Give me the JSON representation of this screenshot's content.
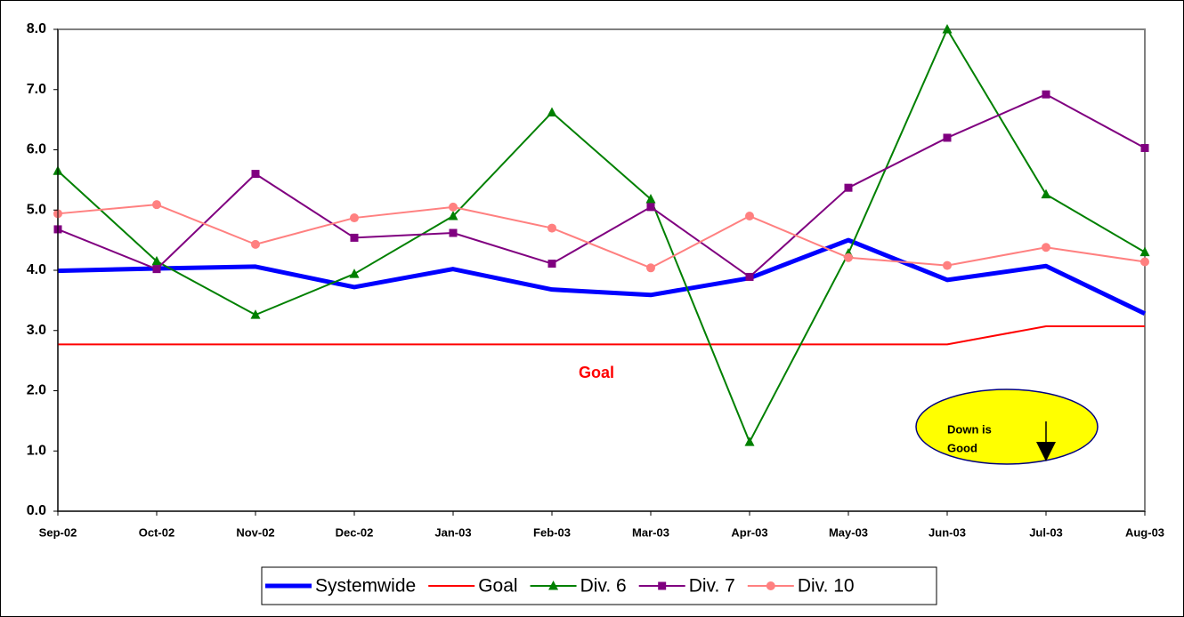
{
  "chart_data": {
    "type": "line",
    "categories": [
      "Sep-02",
      "Oct-02",
      "Nov-02",
      "Dec-02",
      "Jan-03",
      "Feb-03",
      "Mar-03",
      "Apr-03",
      "May-03",
      "Jun-03",
      "Jul-03",
      "Aug-03"
    ],
    "series": [
      {
        "name": "Systemwide",
        "color": "#0000ff",
        "line_width": 5,
        "marker": "none",
        "values": [
          3.99,
          4.03,
          4.06,
          3.72,
          4.02,
          3.68,
          3.59,
          3.87,
          4.5,
          3.84,
          4.07,
          3.28
        ]
      },
      {
        "name": "Goal",
        "color": "#ff0000",
        "line_width": 2,
        "marker": "none",
        "values": [
          2.77,
          2.77,
          2.77,
          2.77,
          2.77,
          2.77,
          2.77,
          2.77,
          2.77,
          2.77,
          3.07,
          3.07
        ]
      },
      {
        "name": "Div. 6",
        "color": "#008000",
        "line_width": 2,
        "marker": "triangle",
        "values": [
          5.65,
          4.15,
          3.26,
          3.94,
          4.9,
          6.62,
          5.18,
          1.15,
          4.28,
          8.0,
          5.26,
          4.3
        ]
      },
      {
        "name": "Div. 7",
        "color": "#800080",
        "line_width": 2,
        "marker": "square",
        "values": [
          4.68,
          4.02,
          5.6,
          4.54,
          4.62,
          4.11,
          5.05,
          3.89,
          5.37,
          6.2,
          6.92,
          6.03
        ]
      },
      {
        "name": "Div. 10",
        "color": "#ff8080",
        "line_width": 2,
        "marker": "circle",
        "values": [
          4.94,
          5.09,
          4.43,
          4.87,
          5.05,
          4.7,
          4.04,
          4.9,
          4.21,
          4.08,
          4.38,
          4.14
        ]
      }
    ],
    "ylim": [
      0,
      8
    ],
    "yticks": [
      {
        "value": 0,
        "label": "0.0"
      },
      {
        "value": 1,
        "label": "1.0"
      },
      {
        "value": 2,
        "label": "2.0"
      },
      {
        "value": 3,
        "label": "3.0"
      },
      {
        "value": 4,
        "label": "4.0"
      },
      {
        "value": 5,
        "label": "5.0"
      },
      {
        "value": 6,
        "label": "6.0"
      },
      {
        "value": 7,
        "label": "7.0"
      },
      {
        "value": 8,
        "label": "8.0"
      }
    ],
    "annotations": [
      "Goal"
    ],
    "callout": [
      "Down is",
      "Good"
    ],
    "legend": "bottom"
  }
}
